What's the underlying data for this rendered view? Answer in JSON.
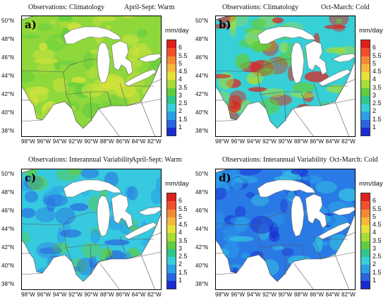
{
  "panels": [
    {
      "letter": "a)",
      "title_left": "Observations: Climatology",
      "title_right": "April-Sept: Warm"
    },
    {
      "letter": "b)",
      "title_left": "Observations: Climatology",
      "title_right": "Oct-March: Cold"
    },
    {
      "letter": "c)",
      "title_left": "Observations: Interannual Variability",
      "title_right": "April-Sept: Warm"
    },
    {
      "letter": "d)",
      "title_left": "Observations: Interannual Variability",
      "title_right": "Oct-March: Cold"
    }
  ],
  "unit": "mm/day",
  "colorbar": {
    "labels": [
      "6",
      "5.5",
      "5",
      "4.5",
      "4",
      "3.5",
      "3",
      "2.5",
      "2",
      "1.5",
      "1"
    ],
    "colors": [
      "#e0201c",
      "#f2502a",
      "#f58a36",
      "#f5b73c",
      "#e8e13a",
      "#a8dc38",
      "#5fcd3e",
      "#2fc68a",
      "#36d0d6",
      "#2ba0e6",
      "#2a64e0",
      "#1a2ad0"
    ]
  },
  "lat_labels": [
    "50°N",
    "48°N",
    "46°N",
    "44°N",
    "42°N",
    "40°N",
    "38°N"
  ],
  "lon_labels": [
    "98°W",
    "96°W",
    "94°W",
    "92°W",
    "90°W",
    "88°W",
    "86°W",
    "84°W",
    "82°W"
  ],
  "panel_fill": [
    {
      "base": "#8fd83c",
      "accents": [
        "#c6e23a",
        "#e0e43c",
        "#5fcd3e"
      ]
    },
    {
      "base": "#36d0d6",
      "accents": [
        "#5fcd3e",
        "#a8dc38",
        "#e0201c"
      ]
    },
    {
      "base": "#36c9e0",
      "accents": [
        "#2ba0e6",
        "#5fcd3e",
        "#2a64e0"
      ]
    },
    {
      "base": "#2a7ae6",
      "accents": [
        "#1a2ad0",
        "#36c9e0",
        "#2ba0e6"
      ]
    }
  ]
}
